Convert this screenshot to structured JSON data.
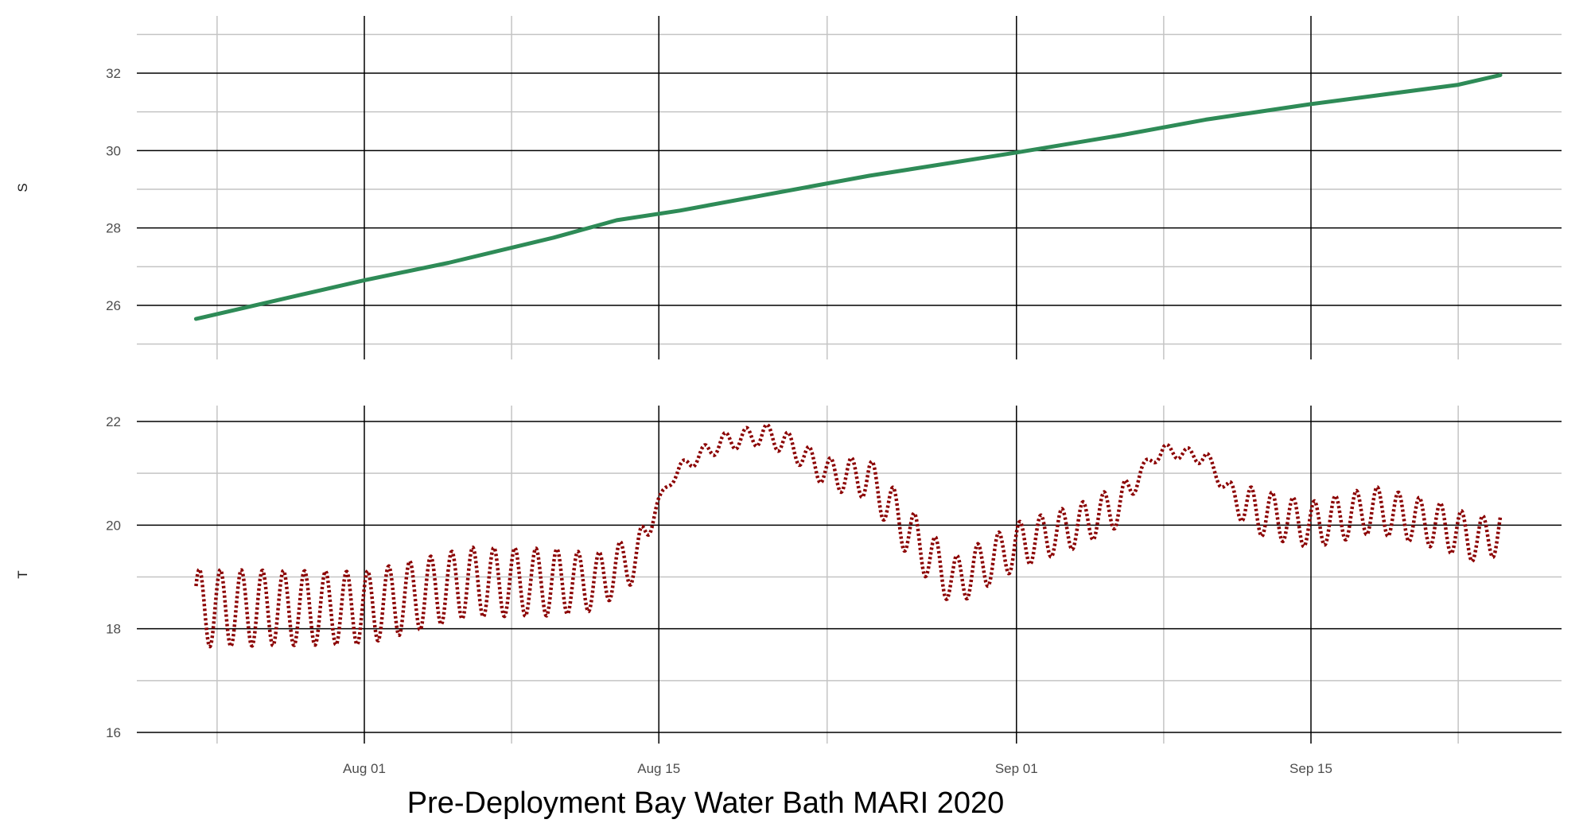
{
  "chart_data": [
    {
      "type": "line",
      "panel": "top",
      "ylabel": "S",
      "ylim": [
        24.9,
        33.1
      ],
      "yticks": [
        26,
        28,
        30,
        32
      ],
      "xlim": [
        "2020-07-20",
        "2020-09-30"
      ],
      "xticks": [
        "2020-08-01",
        "2020-08-15",
        "2020-09-01",
        "2020-09-15"
      ],
      "xminor": [
        "2020-07-25",
        "2020-08-08",
        "2020-08-23",
        "2020-09-08",
        "2020-09-22"
      ],
      "grid": true,
      "series": [
        {
          "color": "#2e8b57",
          "x": [
            "2020-07-24",
            "2020-07-28",
            "2020-08-01",
            "2020-08-05",
            "2020-08-10",
            "2020-08-13",
            "2020-08-16",
            "2020-08-20",
            "2020-08-25",
            "2020-09-01",
            "2020-09-06",
            "2020-09-10",
            "2020-09-15",
            "2020-09-22",
            "2020-09-24"
          ],
          "values": [
            25.65,
            26.15,
            26.65,
            27.1,
            27.75,
            28.2,
            28.45,
            28.85,
            29.35,
            29.95,
            30.4,
            30.8,
            31.2,
            31.7,
            31.95
          ]
        }
      ]
    },
    {
      "type": "line",
      "panel": "bottom",
      "ylabel": "T",
      "ylim": [
        15.7,
        22.3
      ],
      "yticks": [
        16,
        18,
        20,
        22
      ],
      "yminor": [
        17,
        19,
        21
      ],
      "xlim": [
        "2020-07-20",
        "2020-09-30"
      ],
      "xticks": [
        "2020-08-01",
        "2020-08-15",
        "2020-09-01",
        "2020-09-15"
      ],
      "xtick_labels": [
        "Aug 01",
        "Aug 15",
        "Sep 01",
        "Sep 15"
      ],
      "xminor": [
        "2020-07-25",
        "2020-08-08",
        "2020-08-23",
        "2020-09-08",
        "2020-09-22"
      ],
      "grid": true,
      "series": [
        {
          "color": "#8b0000",
          "style": "dotted",
          "baseline": [
            [
              "2020-07-24",
              18.4
            ],
            [
              "2020-08-01",
              18.4
            ],
            [
              "2020-08-06",
              18.9
            ],
            [
              "2020-08-12",
              18.9
            ],
            [
              "2020-08-14",
              19.4
            ],
            [
              "2020-08-15",
              20.5
            ],
            [
              "2020-08-16",
              21.1
            ],
            [
              "2020-08-18",
              21.6
            ],
            [
              "2020-08-20",
              21.75
            ],
            [
              "2020-08-21",
              21.6
            ],
            [
              "2020-08-23",
              21.0
            ],
            [
              "2020-08-25",
              20.9
            ],
            [
              "2020-08-27",
              19.8
            ],
            [
              "2020-08-29",
              18.9
            ],
            [
              "2020-09-01",
              19.6
            ],
            [
              "2020-09-04",
              20.0
            ],
            [
              "2020-09-06",
              20.4
            ],
            [
              "2020-09-07",
              21.1
            ],
            [
              "2020-09-08",
              21.45
            ],
            [
              "2020-09-10",
              21.3
            ],
            [
              "2020-09-11",
              20.7
            ],
            [
              "2020-09-12",
              20.3
            ],
            [
              "2020-09-15",
              20.0
            ],
            [
              "2020-09-18",
              20.3
            ],
            [
              "2020-09-21",
              20.0
            ],
            [
              "2020-09-23",
              19.7
            ],
            [
              "2020-09-24",
              19.9
            ]
          ],
          "diel_amplitude": [
            [
              "2020-07-24",
              0.75
            ],
            [
              "2020-08-10",
              0.65
            ],
            [
              "2020-08-14",
              0.45
            ],
            [
              "2020-08-15",
              0.05
            ],
            [
              "2020-08-17",
              0.15
            ],
            [
              "2020-08-22",
              0.25
            ],
            [
              "2020-08-27",
              0.5
            ],
            [
              "2020-09-01",
              0.45
            ],
            [
              "2020-09-06",
              0.4
            ],
            [
              "2020-09-07",
              0.1
            ],
            [
              "2020-09-11",
              0.15
            ],
            [
              "2020-09-12",
              0.45
            ],
            [
              "2020-09-24",
              0.45
            ]
          ]
        }
      ]
    }
  ],
  "footer": {
    "xlabel": "Pre-Deployment Bay Water Bath MARI 2020"
  }
}
